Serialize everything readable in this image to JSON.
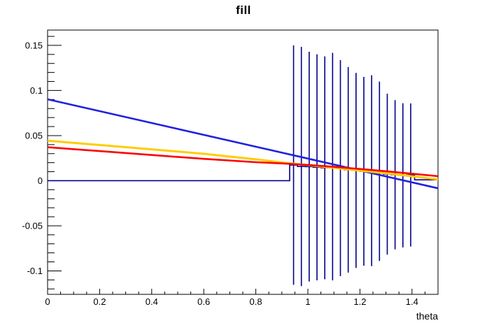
{
  "window": {
    "background": "#ffffff"
  },
  "chart_data": {
    "type": "line",
    "title": "fill",
    "xlabel": "theta",
    "ylabel": "",
    "xlim": [
      0,
      1.5
    ],
    "ylim": [
      -0.126,
      0.167
    ],
    "grid": false,
    "legend": "none",
    "axis_color": "#000000",
    "x_major_ticks": [
      {
        "v": 0.0,
        "label": "0"
      },
      {
        "v": 0.2,
        "label": "0.2"
      },
      {
        "v": 0.4,
        "label": "0.4"
      },
      {
        "v": 0.6,
        "label": "0.6"
      },
      {
        "v": 0.8,
        "label": "0.8"
      },
      {
        "v": 1.0,
        "label": "1"
      },
      {
        "v": 1.2,
        "label": "1.2"
      },
      {
        "v": 1.4,
        "label": "1.4"
      }
    ],
    "x_minor_step": 0.05,
    "y_major_ticks": [
      {
        "v": 0.15,
        "label": "0.15"
      },
      {
        "v": 0.1,
        "label": "0.1"
      },
      {
        "v": 0.05,
        "label": "0.05"
      },
      {
        "v": 0.0,
        "label": "0"
      },
      {
        "v": -0.05,
        "label": "-0.05"
      },
      {
        "v": -0.1,
        "label": "-0.1"
      }
    ],
    "y_minor_step": 0.01,
    "histogram": {
      "name": "filled-histogram-with-errors",
      "color": "#000088",
      "line_width": 1.6,
      "baseline_value": 0,
      "baseline_range": [
        0,
        0.93
      ],
      "bin_width": 0.03,
      "first_bin_left_edge": 0.93,
      "bin_values": [
        0.0173,
        0.0158,
        0.0156,
        0.0149,
        0.0143,
        0.0156,
        0.014,
        0.0121,
        0.0114,
        0.0105,
        0.0111,
        0.0105,
        0.0073,
        0.0066,
        0.006,
        0.0064
      ],
      "tail_value": 0.001,
      "tail_range": [
        1.41,
        1.5
      ],
      "error_bars": [
        {
          "x": 0.945,
          "low": -0.1154,
          "high": 0.15
        },
        {
          "x": 0.975,
          "low": -0.1169,
          "high": 0.1484
        },
        {
          "x": 1.005,
          "low": -0.1118,
          "high": 0.143
        },
        {
          "x": 1.035,
          "low": -0.1105,
          "high": 0.1402
        },
        {
          "x": 1.065,
          "low": -0.1092,
          "high": 0.1378
        },
        {
          "x": 1.095,
          "low": -0.1105,
          "high": 0.1417
        },
        {
          "x": 1.125,
          "low": -0.1058,
          "high": 0.1337
        },
        {
          "x": 1.155,
          "low": -0.1019,
          "high": 0.126
        },
        {
          "x": 1.185,
          "low": -0.0967,
          "high": 0.1195
        },
        {
          "x": 1.215,
          "low": -0.0942,
          "high": 0.1151
        },
        {
          "x": 1.245,
          "low": -0.0947,
          "high": 0.1169
        },
        {
          "x": 1.275,
          "low": -0.089,
          "high": 0.1099
        },
        {
          "x": 1.305,
          "low": -0.082,
          "high": 0.0965
        },
        {
          "x": 1.335,
          "low": -0.0761,
          "high": 0.0893
        },
        {
          "x": 1.365,
          "low": -0.074,
          "high": 0.0859
        },
        {
          "x": 1.395,
          "low": -0.073,
          "high": 0.0857
        }
      ]
    },
    "series": [
      {
        "name": "blue-function-curve",
        "color": "#2121de",
        "line_width": 2.6,
        "points": [
          [
            0,
            0.0903
          ],
          [
            0.5,
            0.0574
          ],
          [
            1.0,
            0.0245
          ],
          [
            1.5,
            -0.0084
          ]
        ]
      },
      {
        "name": "yellow-function-curve",
        "color": "#ffcc00",
        "line_width": 3,
        "points": [
          [
            0,
            0.0443
          ],
          [
            0.2,
            0.0396
          ],
          [
            0.4,
            0.0348
          ],
          [
            0.6,
            0.0298
          ],
          [
            0.8,
            0.0237
          ],
          [
            0.9,
            0.0202
          ],
          [
            1.0,
            0.0172
          ],
          [
            1.1,
            0.0142
          ],
          [
            1.2,
            0.0112
          ],
          [
            1.3,
            0.0082
          ],
          [
            1.4,
            0.0049
          ],
          [
            1.5,
            0.0014
          ]
        ]
      },
      {
        "name": "red-function-curve",
        "color": "#ff0000",
        "line_width": 2.6,
        "points": [
          [
            0,
            0.0371
          ],
          [
            0.2,
            0.0328
          ],
          [
            0.4,
            0.0285
          ],
          [
            0.6,
            0.0242
          ],
          [
            0.8,
            0.0205
          ],
          [
            0.9,
            0.0192
          ],
          [
            1.0,
            0.0175
          ],
          [
            1.1,
            0.0154
          ],
          [
            1.2,
            0.013
          ],
          [
            1.3,
            0.0105
          ],
          [
            1.4,
            0.0078
          ],
          [
            1.5,
            0.005
          ]
        ]
      }
    ],
    "tick_fonts": {
      "label_size": 13,
      "title_size": 14
    }
  }
}
